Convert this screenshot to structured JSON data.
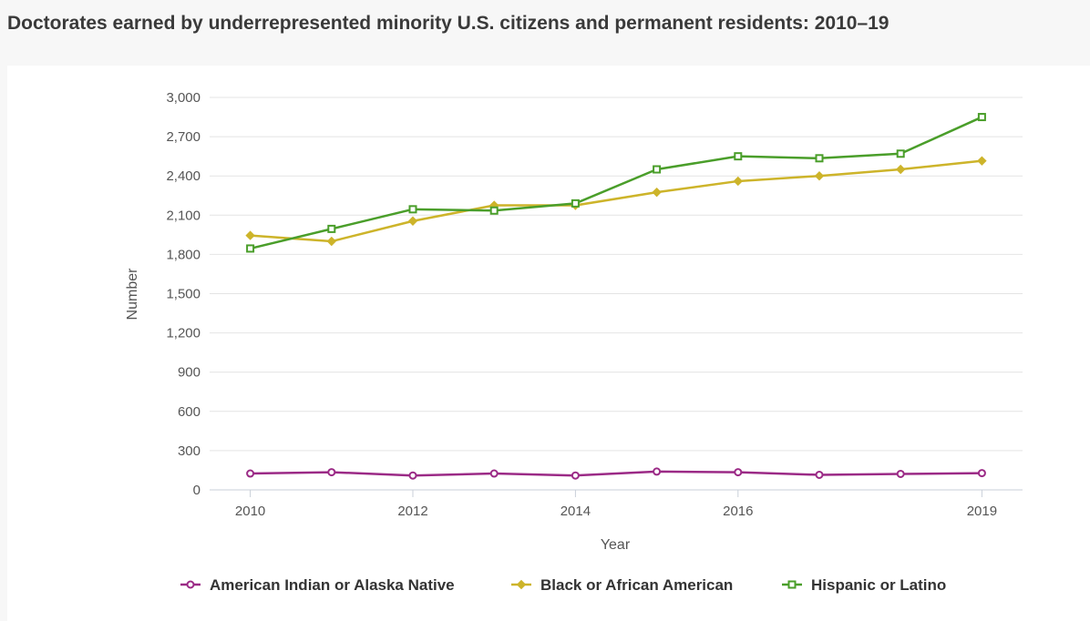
{
  "title": "Doctorates earned by underrepresented minority U.S. citizens and permanent residents: 2010–19",
  "chart_data": {
    "type": "line",
    "title": "Doctorates earned by underrepresented minority U.S. citizens and permanent residents: 2010–19",
    "xlabel": "Year",
    "ylabel": "Number",
    "x": [
      2010,
      2011,
      2012,
      2013,
      2014,
      2015,
      2016,
      2017,
      2018,
      2019
    ],
    "x_ticks": [
      "2010",
      "2012",
      "2014",
      "2016",
      "2019"
    ],
    "y_ticks": [
      "0",
      "300",
      "600",
      "900",
      "1,200",
      "1,500",
      "1,800",
      "2,100",
      "2,400",
      "2,700",
      "3,000"
    ],
    "ylim": [
      0,
      3000
    ],
    "xlim": [
      2009.5,
      2019.5
    ],
    "grid": true,
    "legend": "bottom",
    "series": [
      {
        "name": "American Indian or Alaska Native",
        "color": "#9b2a86",
        "marker": "circle",
        "values": [
          125,
          135,
          110,
          125,
          110,
          140,
          135,
          115,
          122,
          128
        ]
      },
      {
        "name": "Black or African American",
        "color": "#cdb42a",
        "marker": "diamond",
        "values": [
          1945,
          1900,
          2055,
          2175,
          2175,
          2275,
          2360,
          2400,
          2450,
          2515
        ]
      },
      {
        "name": "Hispanic or Latino",
        "color": "#4a9e2a",
        "marker": "square",
        "values": [
          1845,
          1995,
          2145,
          2135,
          2190,
          2450,
          2550,
          2535,
          2570,
          2850
        ]
      }
    ]
  }
}
